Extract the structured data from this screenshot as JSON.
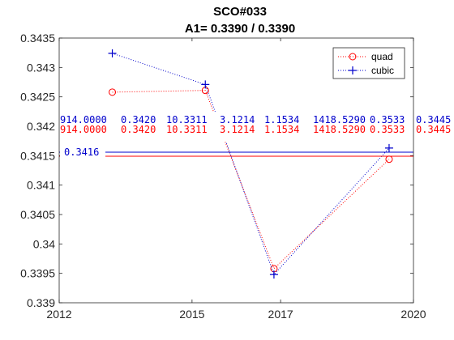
{
  "chart_data": {
    "type": "line",
    "title": "SCO#033",
    "subtitle": "A1= 0.3390 / 0.3390",
    "xlim": [
      2012,
      2020
    ],
    "ylim": [
      0.339,
      0.3435
    ],
    "xticks": [
      2012,
      2015,
      2017,
      2020
    ],
    "yticks": [
      "0.339",
      "0.3395",
      "0.34",
      "0.3405",
      "0.341",
      "0.3415",
      "0.342",
      "0.3425",
      "0.343",
      "0.3435"
    ],
    "series": [
      {
        "name": "quad",
        "color": "#ff0000",
        "marker": "circle",
        "line": "dotted",
        "x": [
          2013.2,
          2015.3,
          2016.85,
          2019.45
        ],
        "y": [
          0.34258,
          0.34261,
          0.33958,
          0.34144
        ]
      },
      {
        "name": "cubic",
        "color": "#0000cc",
        "marker": "plus",
        "line": "dotted",
        "x": [
          2013.2,
          2015.3,
          2016.85,
          2019.45
        ],
        "y": [
          0.34324,
          0.34271,
          0.33948,
          0.34163
        ]
      }
    ],
    "hlines": [
      {
        "y": 0.34156,
        "color": "#0000cc",
        "label": "0.3416"
      },
      {
        "y": 0.34149,
        "color": "#ff0000"
      }
    ],
    "annotation_rows": [
      {
        "color": "#0000cc",
        "values": [
          "914.0000",
          "0.3420",
          "10.3311",
          "3.1214",
          "1.1534",
          "1418.5290",
          "0.3533",
          "0.3445"
        ]
      },
      {
        "color": "#ff0000",
        "values": [
          "914.0000",
          "0.3420",
          "10.3311",
          "3.1214",
          "1.1534",
          "1418.5290",
          "0.3533",
          "0.3445"
        ]
      }
    ],
    "legend": {
      "position": "top-right",
      "entries": [
        "quad",
        "cubic"
      ]
    },
    "grid": false
  }
}
